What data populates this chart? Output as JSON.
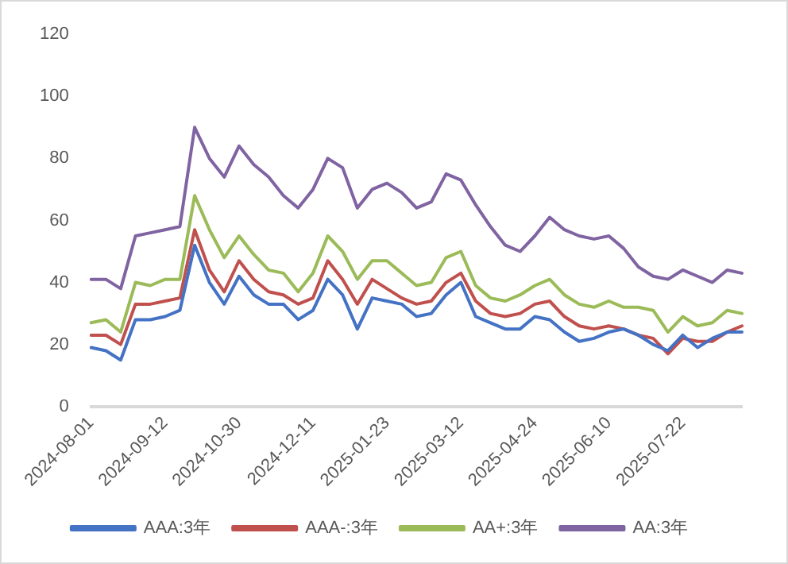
{
  "chart_data": {
    "type": "line",
    "categories": [
      "2024-08-01",
      null,
      null,
      null,
      null,
      "2024-09-12",
      null,
      null,
      null,
      null,
      "2024-10-30",
      null,
      null,
      null,
      null,
      "2024-12-11",
      null,
      null,
      null,
      null,
      "2025-01-23",
      null,
      null,
      null,
      null,
      "2025-03-12",
      null,
      null,
      null,
      null,
      "2025-04-24",
      null,
      null,
      null,
      null,
      "2025-06-10",
      null,
      null,
      null,
      null,
      "2025-07-22",
      null,
      null,
      null,
      null
    ],
    "series": [
      {
        "name": "AAA:3年",
        "color": "#4472c4",
        "values": [
          19,
          18,
          15,
          28,
          28,
          29,
          31,
          52,
          40,
          33,
          42,
          36,
          33,
          33,
          28,
          31,
          41,
          36,
          25,
          35,
          34,
          33,
          29,
          30,
          36,
          40,
          29,
          27,
          25,
          25,
          29,
          28,
          24,
          21,
          22,
          24,
          25,
          23,
          20,
          18,
          23,
          19,
          22,
          24,
          24
        ]
      },
      {
        "name": "AAA-:3年",
        "color": "#c0504d",
        "values": [
          23,
          23,
          20,
          33,
          33,
          34,
          35,
          57,
          44,
          37,
          47,
          41,
          37,
          36,
          33,
          35,
          47,
          41,
          33,
          41,
          38,
          35,
          33,
          34,
          40,
          43,
          34,
          30,
          29,
          30,
          33,
          34,
          29,
          26,
          25,
          26,
          25,
          23,
          22,
          17,
          22,
          21,
          21,
          24,
          26
        ]
      },
      {
        "name": "AA+:3年",
        "color": "#9bbb59",
        "values": [
          27,
          28,
          24,
          40,
          39,
          41,
          41,
          68,
          57,
          48,
          55,
          49,
          44,
          43,
          37,
          43,
          55,
          50,
          41,
          47,
          47,
          43,
          39,
          40,
          48,
          50,
          39,
          35,
          34,
          36,
          39,
          41,
          36,
          33,
          32,
          34,
          32,
          32,
          31,
          24,
          29,
          26,
          27,
          31,
          30
        ]
      },
      {
        "name": "AA:3年",
        "color": "#8064a2",
        "values": [
          41,
          41,
          38,
          55,
          56,
          57,
          58,
          90,
          80,
          74,
          84,
          78,
          74,
          68,
          64,
          70,
          80,
          77,
          64,
          70,
          72,
          69,
          64,
          66,
          75,
          73,
          65,
          58,
          52,
          50,
          55,
          61,
          57,
          55,
          54,
          55,
          51,
          45,
          42,
          41,
          44,
          42,
          40,
          44,
          43
        ]
      }
    ],
    "ylim": [
      0,
      120
    ],
    "yticks": [
      0,
      20,
      40,
      60,
      80,
      100,
      120
    ],
    "grid": false,
    "legend": "bottom",
    "marker": "none",
    "line_style": "solid"
  }
}
